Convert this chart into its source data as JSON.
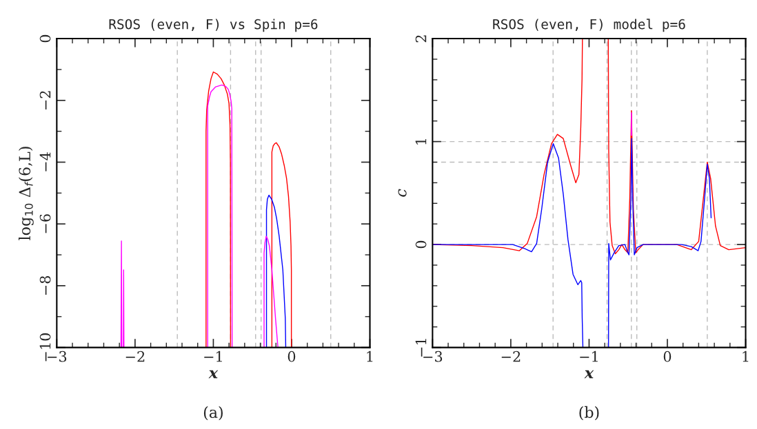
{
  "chart_data": [
    {
      "type": "line",
      "title": "RSOS (even, F) vs Spin p=6",
      "xlabel": "x",
      "ylabel": "log$_{10}$ Δ$_{f}$(6,L)",
      "annotations": [
        "(a)"
      ],
      "xlim": [
        -3,
        1
      ],
      "ylim": [
        -10,
        0
      ],
      "xticks": [
        -3,
        {
          "value": -2.8,
          "label": null
        },
        {
          "value": -2.6,
          "label": null
        },
        {
          "value": -2.4,
          "label": null
        },
        {
          "value": -2.2,
          "label": null
        },
        -2,
        {
          "value": -1.8,
          "label": null
        },
        {
          "value": -1.6,
          "label": null
        },
        {
          "value": -1.4,
          "label": null
        },
        {
          "value": -1.2,
          "label": null
        },
        -1,
        {
          "value": -0.8,
          "label": null
        },
        {
          "value": -0.6,
          "label": null
        },
        {
          "value": -0.4,
          "label": null
        },
        {
          "value": -0.2,
          "label": null
        },
        0,
        {
          "value": 0.2,
          "label": null
        },
        {
          "value": 0.4,
          "label": null
        },
        {
          "value": 0.6,
          "label": null
        },
        {
          "value": 0.8,
          "label": null
        },
        1
      ],
      "yticks": [
        -10,
        {
          "value": -9,
          "label": null
        },
        -8,
        {
          "value": -7,
          "label": null
        },
        -6,
        {
          "value": -5,
          "label": null
        },
        -4,
        {
          "value": -3,
          "label": null
        },
        -2,
        {
          "value": -1,
          "label": null
        },
        0
      ],
      "ref_lines": [
        {
          "axis": "x",
          "value": -1.46,
          "color": "#bbbbbb",
          "line_style": "dashed"
        },
        {
          "axis": "x",
          "value": -0.78,
          "color": "#bbbbbb",
          "line_style": "dashed"
        },
        {
          "axis": "x",
          "value": -0.46,
          "color": "#bbbbbb",
          "line_style": "dashed"
        },
        {
          "axis": "x",
          "value": -0.39,
          "color": "#bbbbbb",
          "line_style": "dashed"
        },
        {
          "axis": "x",
          "value": 0.5,
          "color": "#bbbbbb",
          "line_style": "dashed"
        }
      ],
      "series": [
        {
          "color": "#ff0000",
          "x": [
            -1.093,
            -1.093,
            -1.085,
            -1.06,
            -1.03,
            -1.0,
            -0.95,
            -0.9,
            -0.86,
            -0.82,
            -0.8,
            -0.787,
            -0.782,
            -0.78
          ],
          "values": [
            -10,
            -3.0,
            -2.3,
            -1.7,
            -1.3,
            -1.08,
            -1.15,
            -1.3,
            -1.5,
            -1.8,
            -2.1,
            -2.8,
            -4,
            -10
          ]
        },
        {
          "color": "#ff0000",
          "x": [
            -0.252,
            -0.252,
            -0.235,
            -0.215,
            -0.196,
            -0.16,
            -0.128,
            -0.095,
            -0.065,
            -0.04,
            -0.019,
            -0.008,
            -0.003,
            -0.003
          ],
          "values": [
            -10,
            -3.67,
            -3.47,
            -3.4,
            -3.37,
            -3.5,
            -3.74,
            -4.1,
            -4.52,
            -5.1,
            -5.93,
            -6.7,
            -7.49,
            -10
          ]
        },
        {
          "color": "#0000ff",
          "x": [
            -0.321,
            -0.321,
            -0.31,
            -0.29,
            -0.255,
            -0.22,
            -0.19,
            -0.159,
            -0.112,
            -0.081,
            -0.075
          ],
          "values": [
            -10,
            -5.54,
            -5.2,
            -5.07,
            -5.2,
            -5.46,
            -5.85,
            -6.4,
            -7.49,
            -9.05,
            -10
          ]
        },
        {
          "color": "#ff00ff",
          "x": [
            -2.18,
            -2.174,
            -2.17,
            -2.15,
            -2.146,
            -2.142
          ],
          "values": [
            -10,
            -6.55,
            -10,
            -10,
            -7.49,
            -10
          ]
        },
        {
          "color": "#ff00ff",
          "x": [
            -1.072,
            -1.072,
            -1.05,
            -1.03,
            -0.97,
            -0.89,
            -0.84,
            -0.81,
            -0.79,
            -0.773,
            -0.764,
            -0.76
          ],
          "values": [
            -10,
            -2.18,
            -1.9,
            -1.72,
            -1.56,
            -1.5,
            -1.55,
            -1.64,
            -1.8,
            -2.03,
            -2.26,
            -10
          ]
        },
        {
          "color": "#ff00ff",
          "x": [
            -0.352,
            -0.352,
            -0.34,
            -0.324,
            -0.305,
            -0.284,
            -0.252,
            -0.206,
            -0.175
          ],
          "values": [
            -10,
            -6.94,
            -6.6,
            -6.4,
            -6.5,
            -6.71,
            -7.49,
            -9.05,
            -10
          ]
        }
      ]
    },
    {
      "type": "line",
      "title": "RSOS (even, F) model p=6",
      "xlabel": "x",
      "ylabel": "c",
      "annotations": [
        "(b)"
      ],
      "xlim": [
        -3,
        1
      ],
      "ylim": [
        -1,
        2
      ],
      "xticks": [
        -3,
        {
          "value": -2.8,
          "label": null
        },
        {
          "value": -2.6,
          "label": null
        },
        {
          "value": -2.4,
          "label": null
        },
        {
          "value": -2.2,
          "label": null
        },
        -2,
        {
          "value": -1.8,
          "label": null
        },
        {
          "value": -1.6,
          "label": null
        },
        {
          "value": -1.4,
          "label": null
        },
        {
          "value": -1.2,
          "label": null
        },
        -1,
        {
          "value": -0.8,
          "label": null
        },
        {
          "value": -0.6,
          "label": null
        },
        {
          "value": -0.4,
          "label": null
        },
        {
          "value": -0.2,
          "label": null
        },
        0,
        {
          "value": 0.2,
          "label": null
        },
        {
          "value": 0.4,
          "label": null
        },
        {
          "value": 0.6,
          "label": null
        },
        {
          "value": 0.8,
          "label": null
        },
        1
      ],
      "yticks": [
        -1,
        {
          "value": -0.8,
          "label": null
        },
        {
          "value": -0.6,
          "label": null
        },
        {
          "value": -0.4,
          "label": null
        },
        {
          "value": -0.2,
          "label": null
        },
        0,
        {
          "value": 0.2,
          "label": null
        },
        {
          "value": 0.4,
          "label": null
        },
        {
          "value": 0.6,
          "label": null
        },
        {
          "value": 0.8,
          "label": null
        },
        1,
        {
          "value": 1.2,
          "label": null
        },
        {
          "value": 1.4,
          "label": null
        },
        {
          "value": 1.6,
          "label": null
        },
        {
          "value": 1.8,
          "label": null
        },
        2
      ],
      "ref_lines": [
        {
          "axis": "x",
          "value": -1.46,
          "color": "#bbbbbb",
          "line_style": "dashed"
        },
        {
          "axis": "x",
          "value": -0.77,
          "color": "#bbbbbb",
          "line_style": "dashed"
        },
        {
          "axis": "x",
          "value": -0.46,
          "color": "#bbbbbb",
          "line_style": "dashed"
        },
        {
          "axis": "x",
          "value": -0.39,
          "color": "#bbbbbb",
          "line_style": "dashed"
        },
        {
          "axis": "x",
          "value": 0.51,
          "color": "#bbbbbb",
          "line_style": "dashed"
        },
        {
          "axis": "y",
          "value": 1,
          "color": "#bbbbbb",
          "line_style": "dashed"
        },
        {
          "axis": "y",
          "value": 0.8,
          "color": "#bbbbbb",
          "line_style": "dashed"
        },
        {
          "axis": "y",
          "value": 0,
          "color": "#bbbbbb",
          "line_style": "dashed"
        }
      ],
      "series": [
        {
          "color": "#ff0000",
          "x": [
            -3,
            -2.5,
            -2.1,
            -1.89,
            -1.79,
            -1.67,
            -1.575,
            -1.48,
            -1.405,
            -1.33,
            -1.236,
            -1.17,
            -1.13,
            -1.106,
            -1.09,
            -1.085
          ],
          "values": [
            0,
            -0.01,
            -0.03,
            -0.06,
            0.01,
            0.27,
            0.68,
            0.98,
            1.07,
            1.03,
            0.77,
            0.6,
            0.68,
            1.14,
            1.61,
            2
          ]
        },
        {
          "color": "#ff0000",
          "x": [
            -0.755,
            -0.749,
            -0.733,
            -0.705,
            -0.665,
            -0.62,
            -0.582,
            -0.542,
            -0.505,
            -0.48,
            -0.459,
            -0.434,
            -0.403,
            -0.373,
            -0.31,
            0.121,
            0.306,
            0.4,
            0.46,
            0.51,
            0.553,
            0.615,
            0.676,
            0.784,
            1.0
          ],
          "values": [
            2,
            0.91,
            0.22,
            -0.01,
            -0.09,
            -0.05,
            0,
            -0.05,
            -0.08,
            0.45,
            1.3,
            0.34,
            -0.08,
            -0.05,
            0,
            0,
            -0.05,
            0.03,
            0.45,
            0.8,
            0.64,
            0.18,
            -0.01,
            -0.05,
            -0.03
          ]
        },
        {
          "color": "#0000ff",
          "x": [
            -3,
            -1.976,
            -1.82,
            -1.735,
            -1.67,
            -1.606,
            -1.53,
            -1.458,
            -1.39,
            -1.33,
            -1.27,
            -1.205,
            -1.143,
            -1.106,
            -1.094,
            -1.088,
            -1.079
          ],
          "values": [
            0,
            0,
            -0.04,
            -0.07,
            0.01,
            0.34,
            0.8,
            0.98,
            0.84,
            0.49,
            0.05,
            -0.29,
            -0.39,
            -0.35,
            -0.37,
            -0.71,
            -1
          ]
        },
        {
          "color": "#0000ff",
          "x": [
            -0.752,
            -0.749,
            -0.727,
            -0.68,
            -0.62,
            -0.542,
            -0.51,
            -0.49,
            -0.465,
            -0.456,
            -0.443,
            -0.422,
            -0.388,
            -0.31,
            0.183,
            0.306,
            0.393,
            0.43,
            0.476,
            0.51,
            0.537,
            0.559
          ],
          "values": [
            -1,
            0.01,
            -0.15,
            -0.08,
            -0.01,
            0,
            -0.07,
            -0.1,
            0.45,
            1.03,
            0.45,
            -0.1,
            -0.03,
            0,
            0,
            -0.02,
            -0.06,
            0.03,
            0.45,
            0.78,
            0.64,
            0.26
          ]
        },
        {
          "color": "#ff00ff",
          "x": [
            -0.461,
            -0.459,
            -0.457
          ],
          "values": [
            1.06,
            1.28,
            1.06
          ]
        }
      ]
    }
  ]
}
